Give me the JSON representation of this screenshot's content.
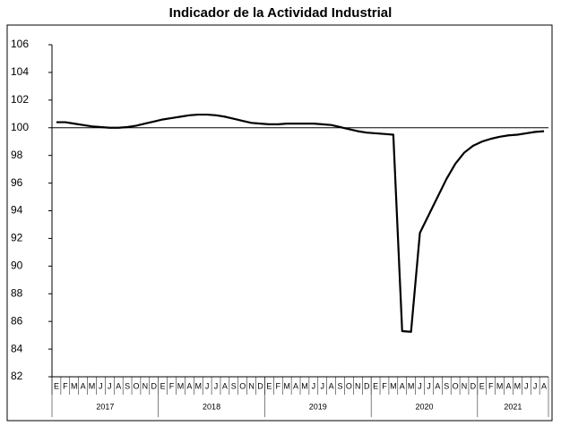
{
  "chart_data": {
    "type": "line",
    "title": "Indicador de la Actividad Industrial",
    "categories": [
      "E",
      "F",
      "M",
      "A",
      "M",
      "J",
      "J",
      "A",
      "S",
      "O",
      "N",
      "D",
      "E",
      "F",
      "M",
      "A",
      "M",
      "J",
      "J",
      "A",
      "S",
      "O",
      "N",
      "D",
      "E",
      "F",
      "M",
      "A",
      "M",
      "J",
      "J",
      "A",
      "S",
      "O",
      "N",
      "D",
      "E",
      "F",
      "M",
      "A",
      "M",
      "J",
      "J",
      "A",
      "S",
      "O",
      "N",
      "D",
      "E",
      "F",
      "M",
      "A",
      "M",
      "J",
      "J",
      "A"
    ],
    "years": [
      "2017",
      "2018",
      "2019",
      "2020",
      "2021"
    ],
    "series": [
      {
        "name": "Indicador",
        "color": "#000000",
        "values": [
          100.4,
          100.4,
          100.3,
          100.2,
          100.1,
          100.05,
          100.0,
          100.0,
          100.05,
          100.15,
          100.3,
          100.45,
          100.6,
          100.7,
          100.8,
          100.9,
          100.95,
          100.95,
          100.9,
          100.8,
          100.65,
          100.5,
          100.35,
          100.3,
          100.25,
          100.25,
          100.3,
          100.3,
          100.3,
          100.3,
          100.25,
          100.2,
          100.05,
          99.9,
          99.75,
          99.65,
          99.6,
          99.55,
          99.5,
          85.3,
          85.25,
          92.4,
          93.7,
          95.0,
          96.3,
          97.4,
          98.2,
          98.7,
          99.0,
          99.2,
          99.35,
          99.45,
          99.5,
          99.6,
          99.7,
          99.75
        ]
      }
    ],
    "reference_line": 100,
    "ylim": [
      82,
      106
    ],
    "yticks": [
      82,
      84,
      86,
      88,
      90,
      92,
      94,
      96,
      98,
      100,
      102,
      104,
      106
    ],
    "grid": false
  }
}
